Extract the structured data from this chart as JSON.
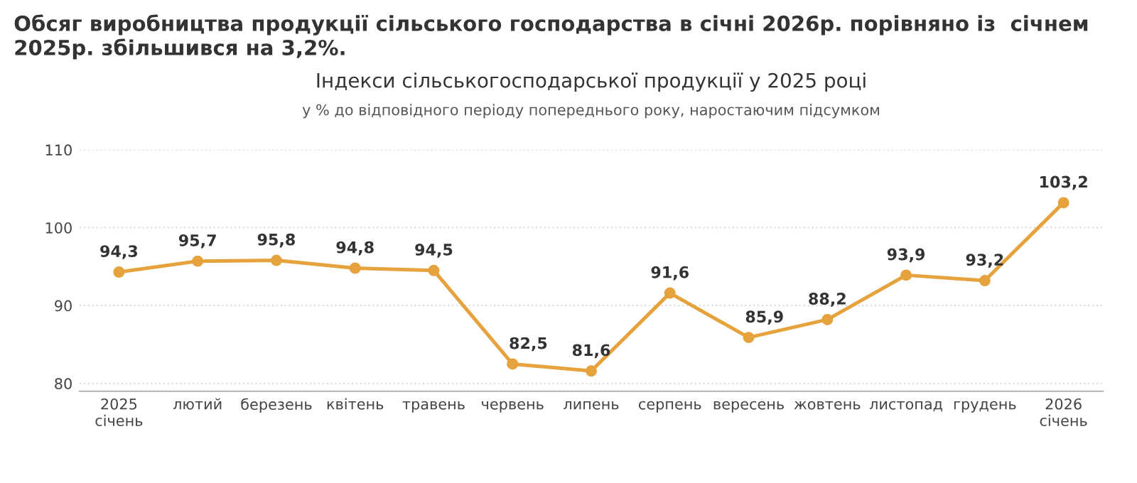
{
  "chart_data": {
    "type": "line",
    "title": "Обсяг виробництва продукції сільського господарства в січні 2026р. порівняно із  січнем 2025р. збільшився на 3,2%.",
    "subtitle": "Індекси сільськогосподарської продукції у 2025 році",
    "annotations": [
      "у % до відповідного періоду попереднього року, наростаючим підсумком"
    ],
    "categories": [
      "2025\nсічень",
      "лютий",
      "березень",
      "квітень",
      "травень",
      "червень",
      "липень",
      "серпень",
      "вересень",
      "жовтень",
      "листопад",
      "грудень",
      "2026\nсічень"
    ],
    "series": [
      {
        "color": "#e6a23c",
        "values": [
          94.3,
          95.7,
          95.8,
          94.8,
          94.5,
          82.5,
          81.6,
          91.6,
          85.9,
          88.2,
          93.9,
          93.2,
          103.2
        ],
        "value_labels": [
          "94,3",
          "95,7",
          "95,8",
          "94,8",
          "94,5",
          "82,5",
          "81,6",
          "91,6",
          "85,9",
          "88,2",
          "93,9",
          "93,2",
          "103,2"
        ]
      }
    ],
    "ylim": [
      79,
      110
    ],
    "yticks": [
      80,
      90,
      100,
      110
    ],
    "grid": "y",
    "marker": "circle",
    "line_style": "solid",
    "legend": false
  }
}
